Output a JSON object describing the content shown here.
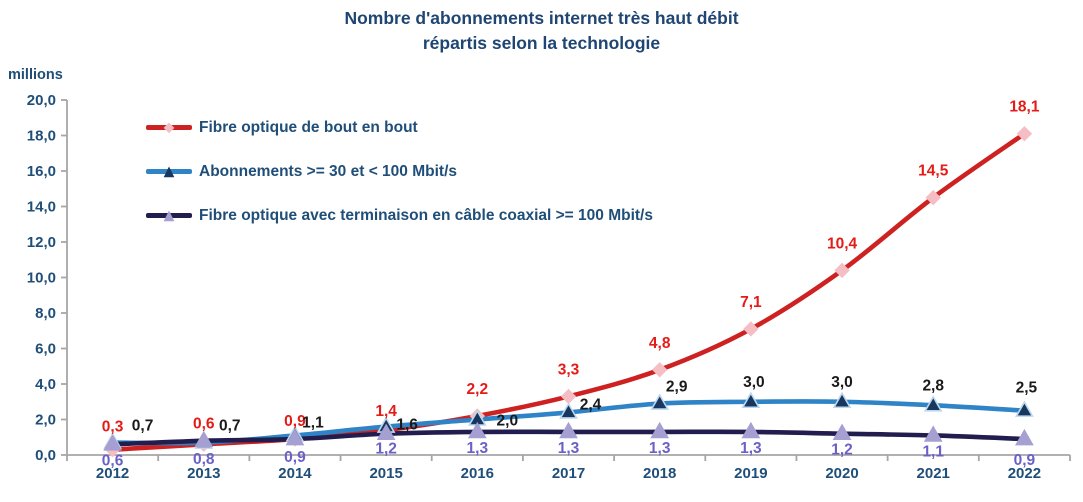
{
  "title": {
    "line1": "Nombre d'abonnements internet très haut débit",
    "line2": "répartis selon la technologie"
  },
  "y_axis_unit": "millions",
  "chart_data": {
    "type": "line",
    "x_labels": [
      "2012",
      "2013",
      "2014",
      "2015",
      "2016",
      "2017",
      "2018",
      "2019",
      "2020",
      "2021",
      "2022"
    ],
    "ylim": [
      0,
      20
    ],
    "ytick_step": 2,
    "ytick_labels": [
      "0,0",
      "2,0",
      "4,0",
      "6,0",
      "8,0",
      "10,0",
      "12,0",
      "14,0",
      "16,0",
      "18,0",
      "20,0"
    ],
    "grid": false,
    "legend_position": "inside-top-left",
    "axis_color": "#A6A6A6",
    "axis_text_color": "#1F4E79",
    "title_color": "#1F4573",
    "series": [
      {
        "name": "Fibre optique de bout en bout",
        "values": [
          0.3,
          0.6,
          0.9,
          1.4,
          2.2,
          3.3,
          4.8,
          7.1,
          10.4,
          14.5,
          18.1
        ],
        "point_labels": [
          "0,3",
          "0,6",
          "0,9",
          "1,4",
          "2,2",
          "3,3",
          "4,8",
          "7,1",
          "10,4",
          "14,5",
          "18,1"
        ],
        "line_color": "#CE2121",
        "marker": "diamond",
        "marker_fill": "#F5BEC4",
        "marker_stroke": "#F5BEC4",
        "label_color": "#E41B17"
      },
      {
        "name": "Abonnements >= 30 et < 100 Mbit/s",
        "values": [
          0.7,
          0.7,
          1.1,
          1.6,
          2.0,
          2.4,
          2.9,
          3.0,
          3.0,
          2.8,
          2.5
        ],
        "point_labels": [
          "0,7",
          "0,7",
          "1,1",
          "1,6",
          "2,0",
          "2,4",
          "2,9",
          "3,0",
          "3,0",
          "2,8",
          "2,5"
        ],
        "line_color": "#2E84C6",
        "marker": "triangle",
        "marker_fill": "#17375E",
        "marker_stroke": "#BDD7EE",
        "label_color": "#1A1A1A"
      },
      {
        "name": "Fibre optique avec terminaison en câble coaxial >= 100 Mbit/s",
        "values": [
          0.6,
          0.8,
          0.9,
          1.2,
          1.3,
          1.3,
          1.3,
          1.3,
          1.2,
          1.1,
          0.9
        ],
        "point_labels": [
          "0,6",
          "0,8",
          "0,9",
          "1,2",
          "1,3",
          "1,3",
          "1,3",
          "1,3",
          "1,2",
          "1,1",
          "0,9"
        ],
        "line_color": "#221D4F",
        "marker": "triangle",
        "marker_fill": "#A6A0D2",
        "marker_stroke": "#A6A0D2",
        "label_color": "#6961C8"
      }
    ]
  }
}
